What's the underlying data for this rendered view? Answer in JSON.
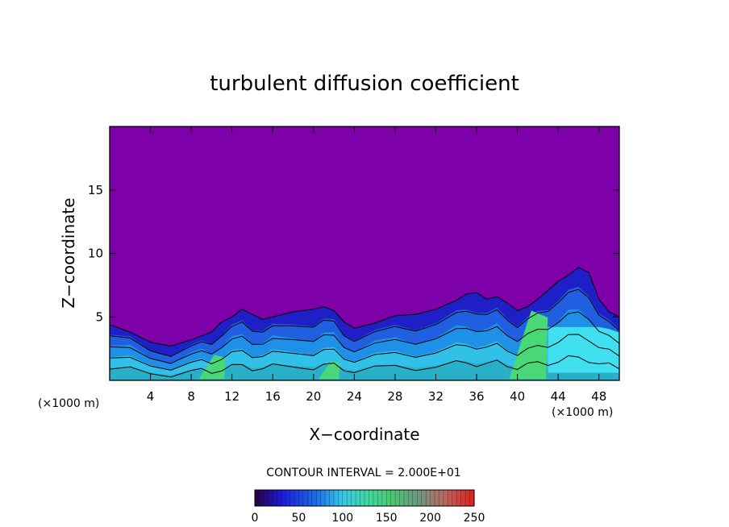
{
  "chart_data": {
    "type": "heatmap",
    "title": "turbulent diffusion coefficient",
    "xlabel": "X−coordinate",
    "ylabel": "Z−coordinate",
    "x_unit_left": "(×1000 m)",
    "x_unit_right": "(×1000 m)",
    "xlim": [
      0,
      50
    ],
    "ylim": [
      0,
      20
    ],
    "x_ticks": [
      4,
      8,
      12,
      16,
      20,
      24,
      28,
      32,
      36,
      40,
      44,
      48
    ],
    "y_ticks": [
      5,
      10,
      15
    ],
    "contour_interval_label": "CONTOUR INTERVAL = 2.000E+01",
    "contour_interval": 20,
    "colorbar": {
      "min": 0,
      "max": 250,
      "ticks": [
        0,
        50,
        100,
        150,
        200,
        250
      ]
    },
    "background_color": "#7d00a8",
    "boundary_layer_top": [
      [
        0,
        4.4
      ],
      [
        2,
        3.8
      ],
      [
        4,
        3.0
      ],
      [
        6,
        2.7
      ],
      [
        8,
        3.2
      ],
      [
        9,
        3.5
      ],
      [
        10,
        3.8
      ],
      [
        11,
        4.6
      ],
      [
        12,
        5.0
      ],
      [
        13,
        5.6
      ],
      [
        14,
        5.2
      ],
      [
        15,
        4.8
      ],
      [
        16,
        5.0
      ],
      [
        18,
        5.4
      ],
      [
        20,
        5.6
      ],
      [
        21,
        5.8
      ],
      [
        22,
        5.5
      ],
      [
        23,
        4.6
      ],
      [
        24,
        4.1
      ],
      [
        26,
        4.5
      ],
      [
        28,
        5.1
      ],
      [
        30,
        5.2
      ],
      [
        32,
        5.6
      ],
      [
        34,
        6.3
      ],
      [
        35,
        6.8
      ],
      [
        36,
        6.9
      ],
      [
        37,
        6.4
      ],
      [
        38,
        6.6
      ],
      [
        39,
        6.1
      ],
      [
        40,
        5.5
      ],
      [
        41,
        5.8
      ],
      [
        42,
        6.4
      ],
      [
        43,
        7.1
      ],
      [
        44,
        7.8
      ],
      [
        45,
        8.3
      ],
      [
        46,
        8.9
      ],
      [
        47,
        8.5
      ],
      [
        48,
        6.4
      ],
      [
        49,
        5.4
      ],
      [
        50,
        5.0
      ]
    ]
  }
}
